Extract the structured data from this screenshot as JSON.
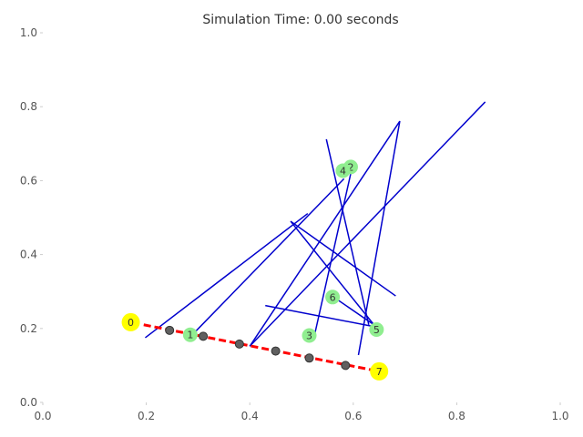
{
  "chart_data": {
    "type": "scatter",
    "title": "Simulation Time: 0.00 seconds",
    "xlabel": "",
    "ylabel": "",
    "xlim": [
      0,
      1
    ],
    "ylim": [
      0,
      1
    ],
    "grid": false,
    "x_ticks": [
      "0.0",
      "0.2",
      "0.4",
      "0.6",
      "0.8",
      "1.0"
    ],
    "y_ticks": [
      "0.0",
      "0.2",
      "0.4",
      "0.6",
      "0.8",
      "1.0"
    ],
    "nodes": [
      {
        "label": "0",
        "x": 0.17,
        "y": 0.217,
        "color": "#ffff00"
      },
      {
        "label": "1",
        "x": 0.285,
        "y": 0.183,
        "color": "#90ee90"
      },
      {
        "label": "2",
        "x": 0.595,
        "y": 0.637,
        "color": "#90ee90"
      },
      {
        "label": "3",
        "x": 0.515,
        "y": 0.181,
        "color": "#90ee90"
      },
      {
        "label": "4",
        "x": 0.58,
        "y": 0.627,
        "color": "#90ee90"
      },
      {
        "label": "5",
        "x": 0.645,
        "y": 0.197,
        "color": "#90ee90"
      },
      {
        "label": "6",
        "x": 0.56,
        "y": 0.285,
        "color": "#90ee90"
      },
      {
        "label": "7",
        "x": 0.65,
        "y": 0.084,
        "color": "#ffff00"
      }
    ],
    "segments": [
      [
        0.198,
        0.175,
        0.512,
        0.511
      ],
      [
        0.289,
        0.183,
        0.582,
        0.605
      ],
      [
        0.4,
        0.152,
        0.855,
        0.813
      ],
      [
        0.4,
        0.152,
        0.69,
        0.761
      ],
      [
        0.479,
        0.49,
        0.682,
        0.288
      ],
      [
        0.479,
        0.49,
        0.64,
        0.21
      ],
      [
        0.548,
        0.712,
        0.63,
        0.21
      ],
      [
        0.525,
        0.181,
        0.598,
        0.637
      ],
      [
        0.61,
        0.128,
        0.69,
        0.761
      ],
      [
        0.43,
        0.262,
        0.64,
        0.205
      ],
      [
        0.562,
        0.285,
        0.64,
        0.21
      ]
    ],
    "path": {
      "color": "#ff0000",
      "style": "dashed",
      "points": [
        [
          0.195,
          0.21
        ],
        [
          0.65,
          0.084
        ]
      ],
      "markers": [
        [
          0.245,
          0.195
        ],
        [
          0.31,
          0.179
        ],
        [
          0.38,
          0.158
        ],
        [
          0.45,
          0.139
        ],
        [
          0.515,
          0.12
        ],
        [
          0.585,
          0.1
        ]
      ]
    },
    "segment_color": "#0000cd",
    "marker_color": "#606060"
  }
}
